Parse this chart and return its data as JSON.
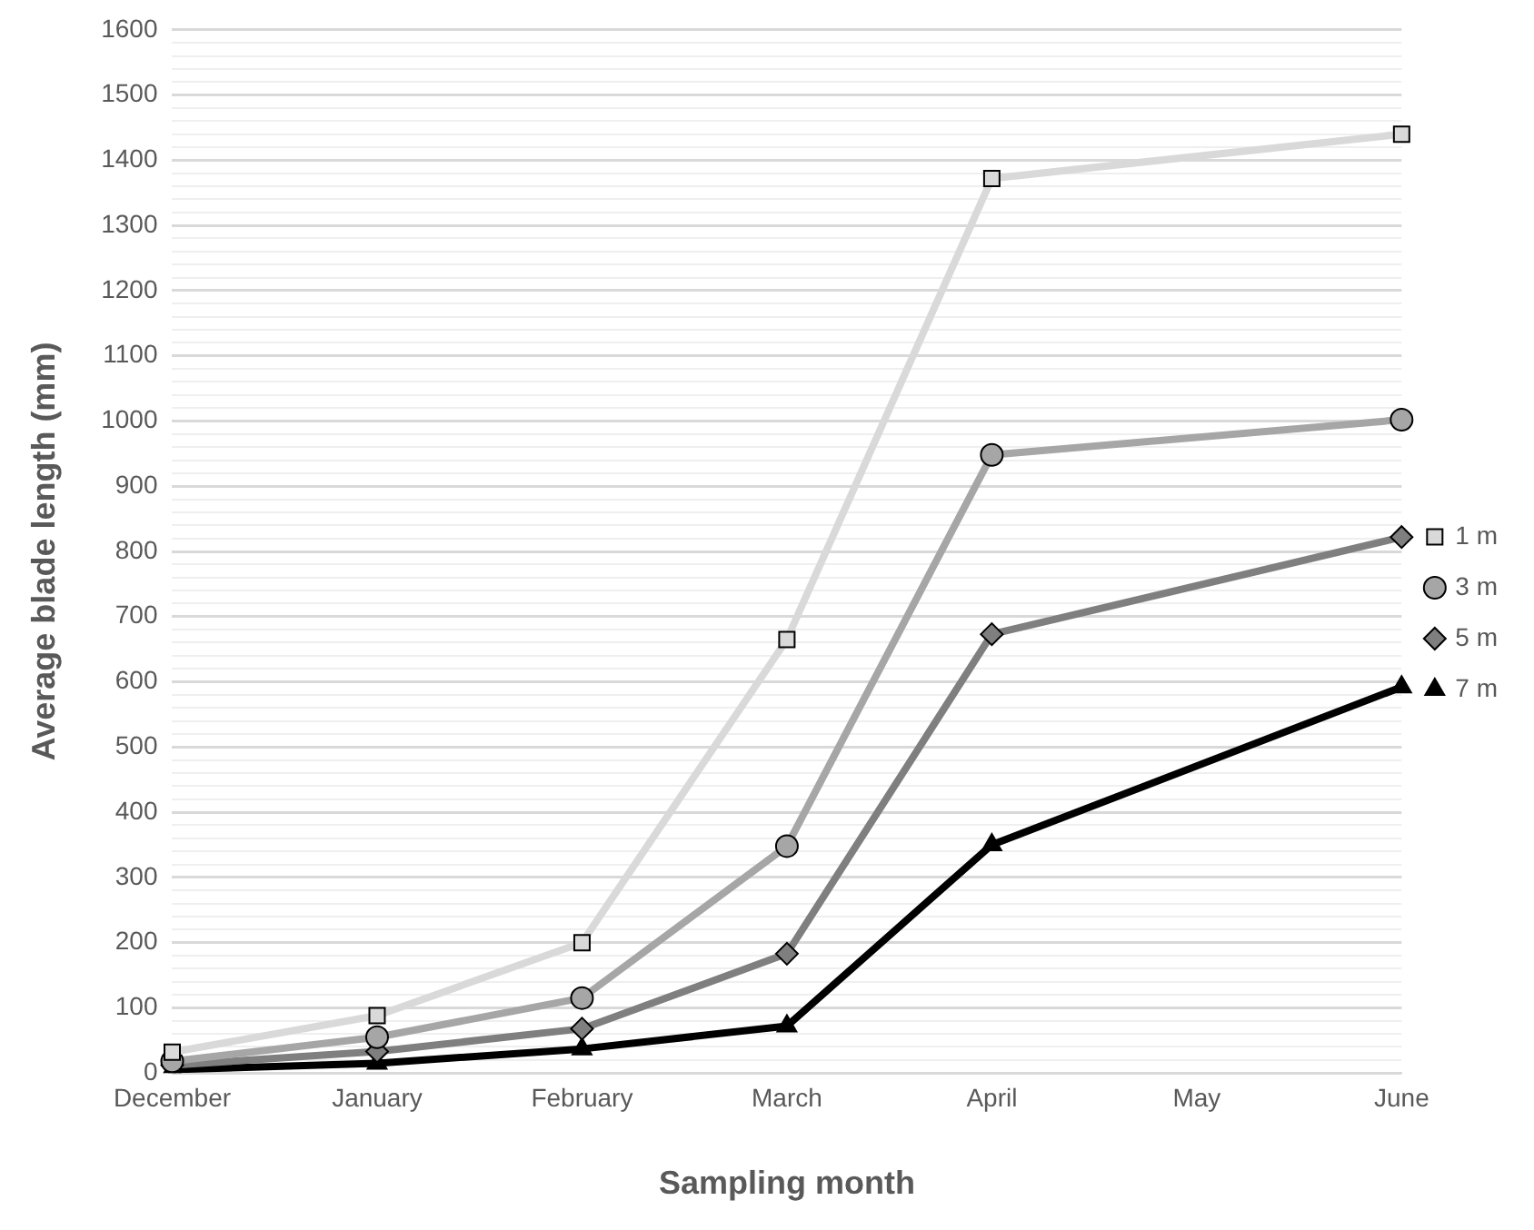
{
  "chart_data": {
    "type": "line",
    "xlabel": "Sampling month",
    "ylabel": "Average blade length (mm)",
    "categories": [
      "December",
      "January",
      "February",
      "March",
      "April",
      "May",
      "June"
    ],
    "series": [
      {
        "name": "1 m",
        "color": "#d9d9d9",
        "marker": "square",
        "values": [
          32,
          88,
          200,
          665,
          1372,
          null,
          1440
        ]
      },
      {
        "name": "3 m",
        "color": "#a6a6a6",
        "marker": "circle",
        "values": [
          18,
          55,
          115,
          348,
          948,
          null,
          1002
        ]
      },
      {
        "name": "5 m",
        "color": "#7f7f7f",
        "marker": "diamond",
        "values": [
          12,
          33,
          68,
          183,
          673,
          null,
          822
        ]
      },
      {
        "name": "7 m",
        "color": "#000000",
        "marker": "triangle",
        "values": [
          5,
          15,
          37,
          72,
          350,
          null,
          592
        ]
      }
    ],
    "ylim": [
      0,
      1600
    ],
    "yticks": [
      0,
      {
        "value": 20,
        "label": null
      },
      {
        "value": 40,
        "label": null
      },
      {
        "value": 60,
        "label": null
      },
      {
        "value": 80,
        "label": null
      },
      100,
      {
        "value": 120,
        "label": null
      },
      {
        "value": 140,
        "label": null
      },
      {
        "value": 160,
        "label": null
      },
      {
        "value": 180,
        "label": null
      },
      200,
      {
        "value": 220,
        "label": null
      },
      {
        "value": 240,
        "label": null
      },
      {
        "value": 260,
        "label": null
      },
      {
        "value": 280,
        "label": null
      },
      300,
      {
        "value": 320,
        "label": null
      },
      {
        "value": 340,
        "label": null
      },
      {
        "value": 360,
        "label": null
      },
      {
        "value": 380,
        "label": null
      },
      400,
      {
        "value": 420,
        "label": null
      },
      {
        "value": 440,
        "label": null
      },
      {
        "value": 460,
        "label": null
      },
      {
        "value": 480,
        "label": null
      },
      500,
      {
        "value": 520,
        "label": null
      },
      {
        "value": 540,
        "label": null
      },
      {
        "value": 560,
        "label": null
      },
      {
        "value": 580,
        "label": null
      },
      600,
      {
        "value": 620,
        "label": null
      },
      {
        "value": 640,
        "label": null
      },
      {
        "value": 660,
        "label": null
      },
      {
        "value": 680,
        "label": null
      },
      700,
      {
        "value": 720,
        "label": null
      },
      {
        "value": 740,
        "label": null
      },
      {
        "value": 760,
        "label": null
      },
      {
        "value": 780,
        "label": null
      },
      800,
      {
        "value": 820,
        "label": null
      },
      {
        "value": 840,
        "label": null
      },
      {
        "value": 860,
        "label": null
      },
      {
        "value": 880,
        "label": null
      },
      900,
      {
        "value": 920,
        "label": null
      },
      {
        "value": 940,
        "label": null
      },
      {
        "value": 960,
        "label": null
      },
      {
        "value": 980,
        "label": null
      },
      1000,
      {
        "value": 1020,
        "label": null
      },
      {
        "value": 1040,
        "label": null
      },
      {
        "value": 1060,
        "label": null
      },
      {
        "value": 1080,
        "label": null
      },
      1100,
      {
        "value": 1120,
        "label": null
      },
      {
        "value": 1140,
        "label": null
      },
      {
        "value": 1160,
        "label": null
      },
      {
        "value": 1180,
        "label": null
      },
      1200,
      {
        "value": 1220,
        "label": null
      },
      {
        "value": 1240,
        "label": null
      },
      {
        "value": 1260,
        "label": null
      },
      {
        "value": 1280,
        "label": null
      },
      1300,
      {
        "value": 1320,
        "label": null
      },
      {
        "value": 1340,
        "label": null
      },
      {
        "value": 1360,
        "label": null
      },
      {
        "value": 1380,
        "label": null
      },
      1400,
      {
        "value": 1420,
        "label": null
      },
      {
        "value": 1440,
        "label": null
      },
      {
        "value": 1460,
        "label": null
      },
      {
        "value": 1480,
        "label": null
      },
      1500,
      {
        "value": 1520,
        "label": null
      },
      {
        "value": 1540,
        "label": null
      },
      {
        "value": 1560,
        "label": null
      },
      {
        "value": 1580,
        "label": null
      },
      1600
    ],
    "grid": "y",
    "legend": "right"
  }
}
